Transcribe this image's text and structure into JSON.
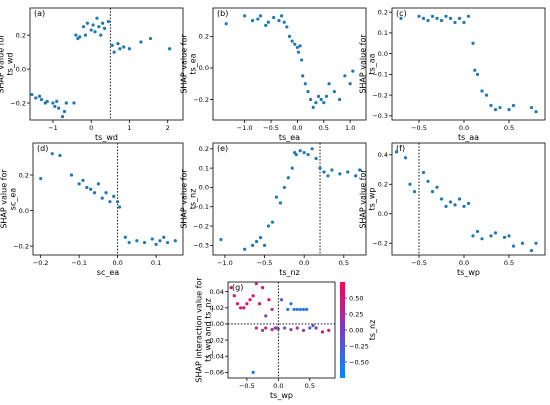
{
  "chart_data": [
    {
      "type": "scatter",
      "panel": "(a)",
      "xlabel": "ts_wd",
      "ylabel": "SHAP value for\nts_wd",
      "xlim": [
        -1.6,
        2.4
      ],
      "ylim": [
        -0.3,
        0.36
      ],
      "xticks": [
        -1,
        0,
        1,
        2
      ],
      "yticks": [
        -0.2,
        0.0,
        0.2
      ],
      "vline": 0.5,
      "color": "#1f77b4",
      "points": [
        [
          -1.55,
          -0.15
        ],
        [
          -1.45,
          -0.17
        ],
        [
          -1.35,
          -0.16
        ],
        [
          -1.3,
          -0.18
        ],
        [
          -1.2,
          -0.2
        ],
        [
          -1.15,
          -0.19
        ],
        [
          -1.0,
          -0.2
        ],
        [
          -0.95,
          -0.22
        ],
        [
          -0.9,
          -0.19
        ],
        [
          -0.85,
          -0.23
        ],
        [
          -0.75,
          -0.28
        ],
        [
          -0.7,
          -0.25
        ],
        [
          -0.65,
          -0.2
        ],
        [
          -0.45,
          -0.2
        ],
        [
          -0.4,
          0.2
        ],
        [
          -0.35,
          0.18
        ],
        [
          -0.3,
          0.19
        ],
        [
          -0.2,
          0.25
        ],
        [
          -0.15,
          0.2
        ],
        [
          -0.1,
          0.27
        ],
        [
          0.0,
          0.23
        ],
        [
          0.05,
          0.26
        ],
        [
          0.1,
          0.22
        ],
        [
          0.15,
          0.3
        ],
        [
          0.2,
          0.25
        ],
        [
          0.25,
          0.2
        ],
        [
          0.3,
          0.27
        ],
        [
          0.35,
          0.24
        ],
        [
          0.45,
          0.28
        ],
        [
          0.55,
          0.14
        ],
        [
          0.6,
          0.1
        ],
        [
          0.7,
          0.15
        ],
        [
          0.75,
          0.12
        ],
        [
          0.85,
          0.13
        ],
        [
          1.0,
          0.12
        ],
        [
          1.3,
          0.16
        ],
        [
          1.55,
          0.18
        ],
        [
          2.05,
          0.12
        ]
      ]
    },
    {
      "type": "scatter",
      "panel": "(b)",
      "xlabel": "ts_ea",
      "ylabel": "SHAP value for\nts_ea",
      "xlim": [
        -1.6,
        1.3
      ],
      "ylim": [
        -0.33,
        0.38
      ],
      "xticks": [
        -1.0,
        -0.5,
        0.0,
        0.5,
        1.0
      ],
      "yticks": [
        -0.2,
        0.0,
        0.2
      ],
      "vline": null,
      "color": "#1f77b4",
      "points": [
        [
          -1.35,
          0.28
        ],
        [
          -1.0,
          0.33
        ],
        [
          -0.85,
          0.3
        ],
        [
          -0.75,
          0.31
        ],
        [
          -0.7,
          0.33
        ],
        [
          -0.6,
          0.27
        ],
        [
          -0.55,
          0.29
        ],
        [
          -0.45,
          0.32
        ],
        [
          -0.35,
          0.3
        ],
        [
          -0.3,
          0.33
        ],
        [
          -0.25,
          0.29
        ],
        [
          -0.2,
          0.26
        ],
        [
          -0.15,
          0.2
        ],
        [
          -0.1,
          0.17
        ],
        [
          -0.05,
          0.15
        ],
        [
          0.0,
          0.13
        ],
        [
          0.02,
          0.1
        ],
        [
          0.05,
          0.14
        ],
        [
          0.08,
          0.05
        ],
        [
          0.1,
          -0.05
        ],
        [
          0.15,
          -0.1
        ],
        [
          0.2,
          -0.15
        ],
        [
          0.25,
          -0.2
        ],
        [
          0.3,
          -0.25
        ],
        [
          0.35,
          -0.22
        ],
        [
          0.4,
          -0.18
        ],
        [
          0.45,
          -0.2
        ],
        [
          0.5,
          -0.22
        ],
        [
          0.55,
          -0.18
        ],
        [
          0.6,
          -0.1
        ],
        [
          0.7,
          -0.15
        ],
        [
          0.8,
          -0.2
        ],
        [
          0.9,
          -0.05
        ],
        [
          1.0,
          -0.1
        ],
        [
          1.05,
          -0.02
        ]
      ]
    },
    {
      "type": "scatter",
      "panel": "(c)",
      "xlabel": "ts_aa",
      "ylabel": "SHAP value for\nts_aa",
      "xlim": [
        -0.8,
        0.9
      ],
      "ylim": [
        -0.32,
        0.22
      ],
      "xticks": [
        -0.5,
        0.0,
        0.5
      ],
      "yticks": [
        -0.3,
        -0.2,
        -0.1,
        0.0,
        0.1,
        0.2
      ],
      "vline": null,
      "color": "#1f77b4",
      "points": [
        [
          -0.7,
          0.17
        ],
        [
          -0.5,
          0.18
        ],
        [
          -0.45,
          0.17
        ],
        [
          -0.4,
          0.16
        ],
        [
          -0.35,
          0.18
        ],
        [
          -0.3,
          0.17
        ],
        [
          -0.25,
          0.16
        ],
        [
          -0.2,
          0.18
        ],
        [
          -0.15,
          0.17
        ],
        [
          -0.1,
          0.15
        ],
        [
          -0.05,
          0.17
        ],
        [
          0.0,
          0.15
        ],
        [
          0.05,
          0.18
        ],
        [
          0.1,
          0.05
        ],
        [
          0.12,
          -0.08
        ],
        [
          0.15,
          -0.1
        ],
        [
          0.2,
          -0.18
        ],
        [
          0.25,
          -0.2
        ],
        [
          0.3,
          -0.25
        ],
        [
          0.35,
          -0.27
        ],
        [
          0.4,
          -0.26
        ],
        [
          0.5,
          -0.27
        ],
        [
          0.55,
          -0.25
        ],
        [
          0.75,
          -0.26
        ],
        [
          0.8,
          -0.28
        ]
      ]
    },
    {
      "type": "scatter",
      "panel": "(d)",
      "xlabel": "sc_ea",
      "ylabel": "SHAP value for\nsc_ea",
      "xlim": [
        -0.22,
        0.17
      ],
      "ylim": [
        -0.25,
        0.38
      ],
      "xticks": [
        -0.2,
        -0.1,
        0.0,
        0.1
      ],
      "yticks": [
        -0.2,
        0.0,
        0.2
      ],
      "vline": 0.0,
      "color": "#1f77b4",
      "points": [
        [
          -0.2,
          0.18
        ],
        [
          -0.17,
          0.32
        ],
        [
          -0.15,
          0.31
        ],
        [
          -0.12,
          0.2
        ],
        [
          -0.1,
          0.15
        ],
        [
          -0.09,
          0.17
        ],
        [
          -0.08,
          0.13
        ],
        [
          -0.07,
          0.12
        ],
        [
          -0.06,
          0.1
        ],
        [
          -0.05,
          0.15
        ],
        [
          -0.04,
          0.07
        ],
        [
          -0.03,
          0.1
        ],
        [
          -0.02,
          0.05
        ],
        [
          -0.01,
          0.08
        ],
        [
          0.0,
          0.05
        ],
        [
          0.005,
          0.02
        ],
        [
          0.02,
          -0.15
        ],
        [
          0.03,
          -0.18
        ],
        [
          0.05,
          -0.17
        ],
        [
          0.07,
          -0.18
        ],
        [
          0.09,
          -0.16
        ],
        [
          0.1,
          -0.19
        ],
        [
          0.11,
          -0.17
        ],
        [
          0.12,
          -0.15
        ],
        [
          0.13,
          -0.18
        ],
        [
          0.15,
          -0.17
        ]
      ]
    },
    {
      "type": "scatter",
      "panel": "(e)",
      "xlabel": "ts_nz",
      "ylabel": "SHAP value for\nts_nz",
      "xlim": [
        -1.15,
        0.78
      ],
      "ylim": [
        -0.35,
        0.23
      ],
      "xticks": [
        -1.0,
        -0.5,
        0.0,
        0.5
      ],
      "yticks": [
        -0.3,
        -0.2,
        -0.1,
        0.0,
        0.1,
        0.2
      ],
      "vline": 0.2,
      "color": "#1f77b4",
      "points": [
        [
          -1.05,
          -0.27
        ],
        [
          -0.75,
          -0.32
        ],
        [
          -0.65,
          -0.3
        ],
        [
          -0.6,
          -0.28
        ],
        [
          -0.55,
          -0.26
        ],
        [
          -0.5,
          -0.3
        ],
        [
          -0.45,
          -0.2
        ],
        [
          -0.4,
          -0.18
        ],
        [
          -0.35,
          -0.05
        ],
        [
          -0.3,
          -0.08
        ],
        [
          -0.25,
          0.0
        ],
        [
          -0.2,
          0.05
        ],
        [
          -0.15,
          0.1
        ],
        [
          -0.12,
          0.18
        ],
        [
          -0.1,
          0.17
        ],
        [
          -0.05,
          0.19
        ],
        [
          0.0,
          0.18
        ],
        [
          0.05,
          0.17
        ],
        [
          0.1,
          0.2
        ],
        [
          0.15,
          0.15
        ],
        [
          0.2,
          0.1
        ],
        [
          0.25,
          0.08
        ],
        [
          0.3,
          0.06
        ],
        [
          0.35,
          0.09
        ],
        [
          0.45,
          0.07
        ],
        [
          0.55,
          0.08
        ],
        [
          0.65,
          0.06
        ],
        [
          0.7,
          0.09
        ]
      ]
    },
    {
      "type": "scatter",
      "panel": "(f)",
      "xlabel": "ts_wp",
      "ylabel": "SHAP value for\nts_wp",
      "xlim": [
        -0.8,
        0.9
      ],
      "ylim": [
        -0.28,
        0.48
      ],
      "xticks": [
        -0.5,
        0.0,
        0.5
      ],
      "yticks": [
        -0.2,
        0.0,
        0.2,
        0.4
      ],
      "vline": -0.5,
      "color": "#1f77b4",
      "points": [
        [
          -0.75,
          0.42
        ],
        [
          -0.65,
          0.38
        ],
        [
          -0.6,
          0.2
        ],
        [
          -0.55,
          0.15
        ],
        [
          -0.45,
          0.28
        ],
        [
          -0.4,
          0.22
        ],
        [
          -0.35,
          0.15
        ],
        [
          -0.3,
          0.18
        ],
        [
          -0.25,
          0.1
        ],
        [
          -0.2,
          0.05
        ],
        [
          -0.15,
          0.08
        ],
        [
          -0.1,
          0.06
        ],
        [
          -0.05,
          0.1
        ],
        [
          0.0,
          0.05
        ],
        [
          0.05,
          0.07
        ],
        [
          0.1,
          -0.15
        ],
        [
          0.15,
          -0.12
        ],
        [
          0.2,
          -0.17
        ],
        [
          0.3,
          -0.15
        ],
        [
          0.35,
          -0.13
        ],
        [
          0.45,
          -0.16
        ],
        [
          0.5,
          -0.15
        ],
        [
          0.55,
          -0.22
        ],
        [
          0.65,
          -0.2
        ],
        [
          0.75,
          -0.25
        ],
        [
          0.8,
          -0.2
        ]
      ]
    },
    {
      "type": "scatter",
      "panel": "(g)",
      "xlabel": "ts_wp",
      "ylabel": "SHAP interaction value for\nts_wp and ts_nz",
      "xlim": [
        -0.8,
        0.9
      ],
      "ylim": [
        -0.067,
        0.052
      ],
      "xticks": [
        -0.5,
        0.0,
        0.5
      ],
      "yticks": [
        -0.06,
        -0.04,
        -0.02,
        0.0,
        0.02,
        0.04
      ],
      "vline": 0.0,
      "hline": 0.0,
      "colorbar": {
        "label": "ts_nz",
        "min": -0.75,
        "max": 0.75,
        "ticks": [
          -0.5,
          -0.25,
          0.0,
          0.25,
          0.5
        ],
        "low": "#008afb",
        "high": "#ff0052"
      },
      "points": [
        [
          -0.75,
          0.045,
          0.6
        ],
        [
          -0.7,
          0.035,
          0.5
        ],
        [
          -0.65,
          0.025,
          0.6
        ],
        [
          -0.6,
          0.02,
          0.4
        ],
        [
          -0.55,
          0.02,
          0.55
        ],
        [
          -0.5,
          0.025,
          0.6
        ],
        [
          -0.45,
          0.03,
          0.5
        ],
        [
          -0.4,
          0.035,
          0.6
        ],
        [
          -0.35,
          0.05,
          0.3
        ],
        [
          -0.3,
          0.025,
          0.55
        ],
        [
          -0.25,
          0.045,
          0.6
        ],
        [
          -0.2,
          0.01,
          0.0
        ],
        [
          -0.15,
          0.03,
          0.5
        ],
        [
          -0.1,
          0.018,
          0.3
        ],
        [
          -0.05,
          -0.005,
          0.1
        ],
        [
          -0.02,
          -0.005,
          -0.1
        ],
        [
          0.05,
          0.03,
          -0.3
        ],
        [
          0.1,
          -0.005,
          -0.2
        ],
        [
          0.15,
          0.018,
          -0.5
        ],
        [
          0.2,
          0.025,
          -0.5
        ],
        [
          0.25,
          0.018,
          -0.55
        ],
        [
          0.3,
          0.018,
          -0.5
        ],
        [
          0.35,
          0.018,
          -0.6
        ],
        [
          0.4,
          0.018,
          -0.55
        ],
        [
          0.45,
          0.018,
          -0.5
        ],
        [
          0.5,
          -0.005,
          -0.3
        ],
        [
          0.55,
          -0.002,
          -0.2
        ],
        [
          0.6,
          -0.005,
          0.1
        ],
        [
          0.7,
          -0.01,
          0.5
        ],
        [
          0.8,
          -0.008,
          0.4
        ],
        [
          -0.4,
          -0.06,
          -0.6
        ],
        [
          -0.35,
          -0.005,
          0.2
        ],
        [
          -0.25,
          -0.008,
          0.1
        ],
        [
          -0.2,
          -0.005,
          0.3
        ],
        [
          -0.1,
          -0.007,
          0.2
        ],
        [
          0.0,
          -0.006,
          0.0
        ],
        [
          0.2,
          -0.007,
          -0.1
        ],
        [
          0.3,
          -0.005,
          0.2
        ],
        [
          0.4,
          -0.008,
          0.0
        ]
      ]
    }
  ]
}
